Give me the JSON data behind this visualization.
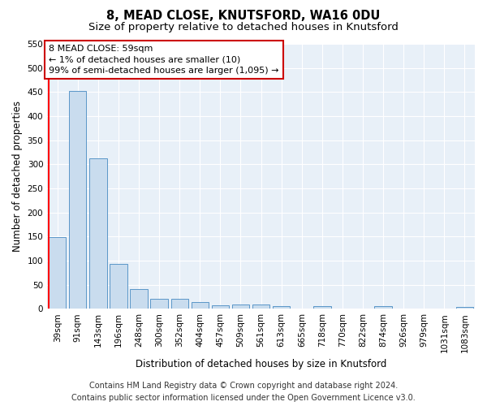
{
  "title": "8, MEAD CLOSE, KNUTSFORD, WA16 0DU",
  "subtitle": "Size of property relative to detached houses in Knutsford",
  "xlabel": "Distribution of detached houses by size in Knutsford",
  "ylabel": "Number of detached properties",
  "categories": [
    "39sqm",
    "91sqm",
    "143sqm",
    "196sqm",
    "248sqm",
    "300sqm",
    "352sqm",
    "404sqm",
    "457sqm",
    "509sqm",
    "561sqm",
    "613sqm",
    "665sqm",
    "718sqm",
    "770sqm",
    "822sqm",
    "874sqm",
    "926sqm",
    "979sqm",
    "1031sqm",
    "1083sqm"
  ],
  "values": [
    148,
    453,
    312,
    93,
    40,
    20,
    20,
    13,
    7,
    8,
    8,
    5,
    0,
    5,
    0,
    0,
    5,
    0,
    0,
    0,
    3
  ],
  "bar_color": "#c9dcee",
  "bar_edge_color": "#5a96c8",
  "annotation_text": "8 MEAD CLOSE: 59sqm\n← 1% of detached houses are smaller (10)\n99% of semi-detached houses are larger (1,095) →",
  "annotation_box_color": "white",
  "annotation_box_edge": "#cc0000",
  "ylim": [
    0,
    550
  ],
  "yticks": [
    0,
    50,
    100,
    150,
    200,
    250,
    300,
    350,
    400,
    450,
    500,
    550
  ],
  "footer_line1": "Contains HM Land Registry data © Crown copyright and database right 2024.",
  "footer_line2": "Contains public sector information licensed under the Open Government Licence v3.0.",
  "plot_bg_color": "#e8f0f8",
  "fig_bg_color": "#ffffff",
  "title_fontsize": 10.5,
  "subtitle_fontsize": 9.5,
  "axis_label_fontsize": 8.5,
  "tick_fontsize": 7.5,
  "annotation_fontsize": 8,
  "footer_fontsize": 7
}
